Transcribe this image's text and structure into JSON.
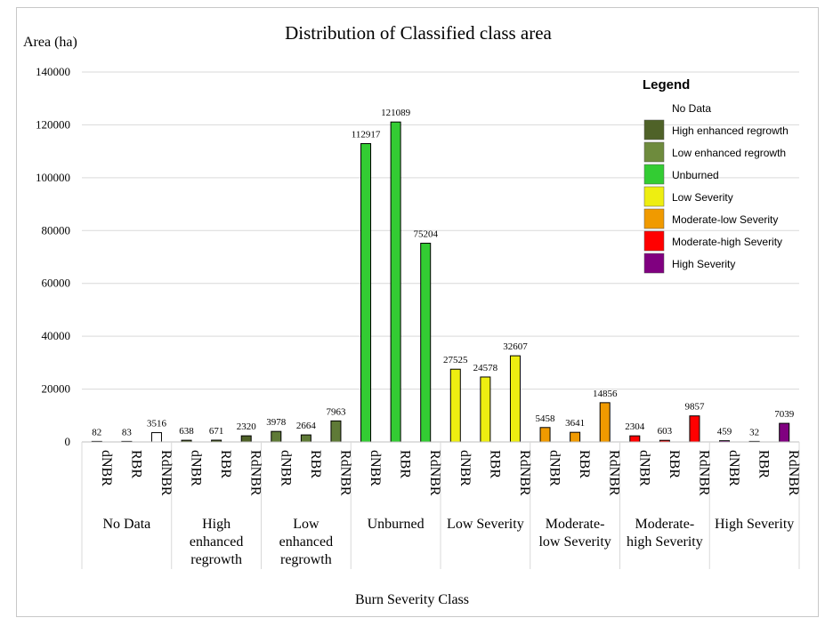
{
  "chart_data": {
    "type": "bar",
    "title": "Distribution of Classified class area",
    "ylabel": "Area (ha)",
    "xlabel": "Burn Severity Class",
    "ylim": [
      0,
      140000
    ],
    "yticks": [
      0,
      20000,
      40000,
      60000,
      80000,
      100000,
      120000,
      140000
    ],
    "grid": true,
    "legend_title": "Legend",
    "legend_position": "top-right",
    "groups": [
      {
        "label": "No Data",
        "label_lines": [
          "No Data"
        ],
        "color": "#ffffff",
        "bars": [
          {
            "index": "dNBR",
            "value": 82
          },
          {
            "index": "RBR",
            "value": 83
          },
          {
            "index": "RdNBR",
            "value": 3516
          }
        ]
      },
      {
        "label": "High enhanced regrowth",
        "label_lines": [
          "High",
          "enhanced",
          "regrowth"
        ],
        "color": "#4f6228",
        "bars": [
          {
            "index": "dNBR",
            "value": 638
          },
          {
            "index": "RBR",
            "value": 671
          },
          {
            "index": "RdNBR",
            "value": 2320
          }
        ]
      },
      {
        "label": "Low enhanced regrowth",
        "label_lines": [
          "Low",
          "enhanced",
          "regrowth"
        ],
        "color": "#5f7a37",
        "bars": [
          {
            "index": "dNBR",
            "value": 3978
          },
          {
            "index": "RBR",
            "value": 2664
          },
          {
            "index": "RdNBR",
            "value": 7963
          }
        ]
      },
      {
        "label": "Unburned",
        "label_lines": [
          "Unburned"
        ],
        "color": "#33cc33",
        "bars": [
          {
            "index": "dNBR",
            "value": 112917
          },
          {
            "index": "RBR",
            "value": 121089
          },
          {
            "index": "RdNBR",
            "value": 75204
          }
        ]
      },
      {
        "label": "Low Severity",
        "label_lines": [
          "Low Severity"
        ],
        "color": "#eeee11",
        "bars": [
          {
            "index": "dNBR",
            "value": 27525
          },
          {
            "index": "RBR",
            "value": 24578
          },
          {
            "index": "RdNBR",
            "value": 32607
          }
        ]
      },
      {
        "label": "Moderate-low Severity",
        "label_lines": [
          "Moderate-",
          "low Severity"
        ],
        "color": "#f09a00",
        "bars": [
          {
            "index": "dNBR",
            "value": 5458
          },
          {
            "index": "RBR",
            "value": 3641
          },
          {
            "index": "RdNBR",
            "value": 14856
          }
        ]
      },
      {
        "label": "Moderate-high Severity",
        "label_lines": [
          "Moderate-",
          "high Severity"
        ],
        "color": "#ff0000",
        "bars": [
          {
            "index": "dNBR",
            "value": 2304
          },
          {
            "index": "RBR",
            "value": 603
          },
          {
            "index": "RdNBR",
            "value": 9857
          }
        ]
      },
      {
        "label": "High Severity",
        "label_lines": [
          "High Severity"
        ],
        "color": "#800080",
        "bars": [
          {
            "index": "dNBR",
            "value": 459
          },
          {
            "index": "RBR",
            "value": 32
          },
          {
            "index": "RdNBR",
            "value": 7039
          }
        ]
      }
    ],
    "legend": [
      {
        "label": "No Data",
        "color": "#ffffff"
      },
      {
        "label": "High enhanced regrowth",
        "color": "#4f6228"
      },
      {
        "label": "Low enhanced regrowth",
        "color": "#6e8b3d"
      },
      {
        "label": "Unburned",
        "color": "#33cc33"
      },
      {
        "label": "Low Severity",
        "color": "#eeee11"
      },
      {
        "label": "Moderate-low Severity",
        "color": "#f09a00"
      },
      {
        "label": "Moderate-high Severity",
        "color": "#ff0000"
      },
      {
        "label": "High Severity",
        "color": "#800080"
      }
    ]
  }
}
